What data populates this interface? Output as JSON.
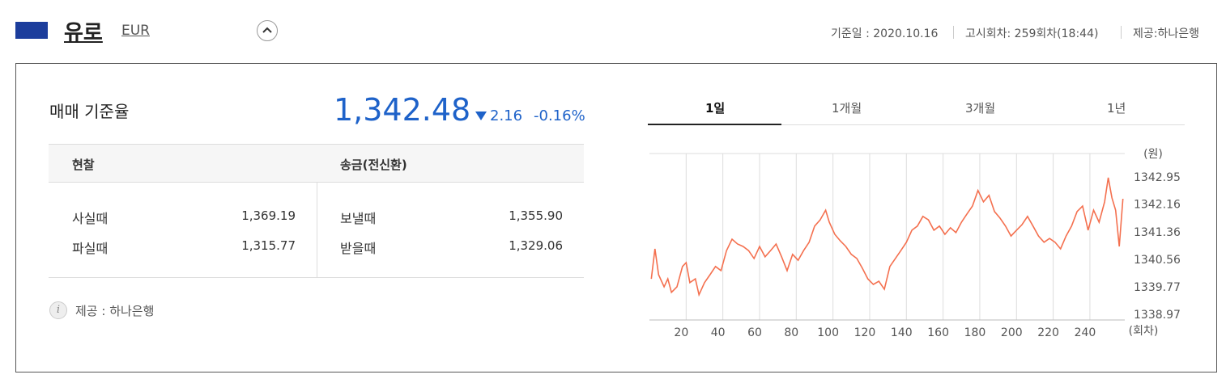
{
  "header": {
    "currency_name": "유로",
    "currency_code": "EUR",
    "base_date": "기준일 : 2020.10.16",
    "notice_round": "고시회차: 259회차(18:44)",
    "provider": "제공:하나은행"
  },
  "summary": {
    "label": "매매 기준율",
    "rate": "1,342.48",
    "change": "2.16",
    "change_pct": "-0.16%"
  },
  "table": {
    "headers": [
      "현찰",
      "송금(전신환)"
    ],
    "rows": [
      [
        "사실때",
        "1,369.19",
        "보낼때",
        "1,355.90"
      ],
      [
        "파실때",
        "1,315.77",
        "받을때",
        "1,329.06"
      ]
    ]
  },
  "footer": {
    "note": "제공 : 하나은행"
  },
  "tabs": [
    "1일",
    "1개월",
    "3개월",
    "1년"
  ],
  "chart_data": {
    "type": "line",
    "color": "#f4704f",
    "y_unit": "(원)",
    "x_unit": "(회차)",
    "grid": "x",
    "xlim": [
      0,
      259
    ],
    "ylim": [
      1338.83,
      1343.65
    ],
    "xticks": [
      20,
      40,
      60,
      80,
      100,
      120,
      140,
      160,
      180,
      200,
      220,
      240
    ],
    "yticks": [
      1338.97,
      1339.77,
      1340.56,
      1341.36,
      1342.16,
      1342.95
    ],
    "x": [
      1,
      3,
      5,
      8,
      10,
      12,
      15,
      18,
      20,
      22,
      25,
      27,
      30,
      33,
      36,
      39,
      42,
      45,
      48,
      51,
      54,
      57,
      60,
      63,
      66,
      69,
      72,
      75,
      78,
      81,
      84,
      87,
      90,
      93,
      96,
      98,
      101,
      104,
      107,
      110,
      113,
      116,
      119,
      122,
      125,
      128,
      131,
      134,
      137,
      140,
      143,
      146,
      149,
      152,
      155,
      158,
      161,
      164,
      167,
      170,
      173,
      176,
      179,
      182,
      185,
      188,
      191,
      194,
      197,
      200,
      203,
      206,
      209,
      212,
      215,
      218,
      221,
      224,
      227,
      230,
      233,
      236,
      239,
      242,
      245,
      248,
      250,
      252,
      254,
      256,
      258
    ],
    "values": [
      1340.02,
      1340.89,
      1340.14,
      1339.79,
      1340.02,
      1339.63,
      1339.79,
      1340.38,
      1340.49,
      1339.91,
      1340.02,
      1339.56,
      1339.91,
      1340.14,
      1340.38,
      1340.26,
      1340.84,
      1341.17,
      1341.03,
      1340.96,
      1340.84,
      1340.61,
      1340.96,
      1340.66,
      1340.84,
      1341.03,
      1340.66,
      1340.26,
      1340.73,
      1340.56,
      1340.84,
      1341.08,
      1341.55,
      1341.73,
      1342.01,
      1341.66,
      1341.31,
      1341.12,
      1340.96,
      1340.73,
      1340.61,
      1340.33,
      1340.02,
      1339.86,
      1339.95,
      1339.72,
      1340.38,
      1340.61,
      1340.84,
      1341.08,
      1341.43,
      1341.55,
      1341.83,
      1341.73,
      1341.43,
      1341.55,
      1341.31,
      1341.5,
      1341.36,
      1341.66,
      1341.9,
      1342.13,
      1342.58,
      1342.25,
      1342.44,
      1341.97,
      1341.78,
      1341.55,
      1341.26,
      1341.43,
      1341.59,
      1341.83,
      1341.55,
      1341.26,
      1341.08,
      1341.19,
      1341.08,
      1340.89,
      1341.26,
      1341.55,
      1341.97,
      1342.13,
      1341.43,
      1342.01,
      1341.66,
      1342.25,
      1342.95,
      1342.37,
      1342.01,
      1340.96,
      1342.34
    ]
  }
}
